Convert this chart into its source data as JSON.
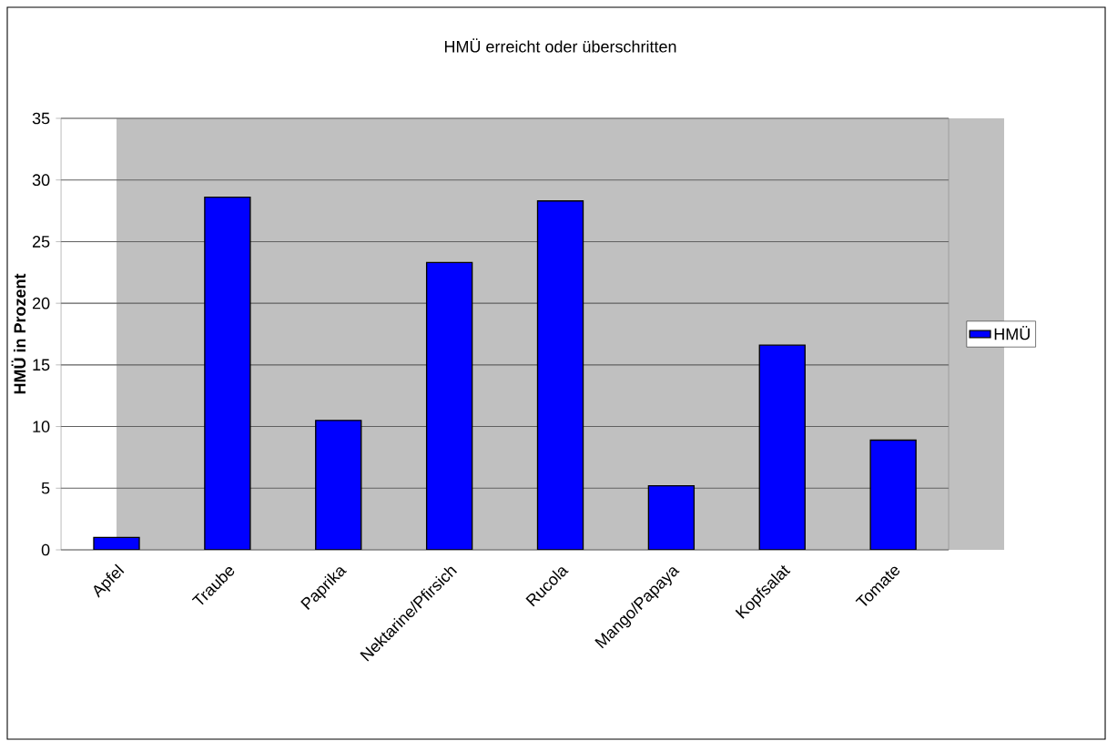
{
  "chart_data": {
    "type": "bar",
    "title": "HMÜ erreicht oder überschritten",
    "ylabel": "HMÜ in Prozent",
    "categories": [
      "Apfel",
      "Traube",
      "Paprika",
      "Nektarine/Pfirsich",
      "Rucola",
      "Mango/Papaya",
      "Kopfsalat",
      "Tomate"
    ],
    "series": [
      {
        "name": "HMÜ",
        "color": "#0000ff",
        "values": [
          1.0,
          28.6,
          10.5,
          23.3,
          28.3,
          5.2,
          16.6,
          8.9
        ]
      }
    ],
    "ylim": [
      0,
      35
    ],
    "yticks": [
      0,
      5,
      10,
      15,
      20,
      25,
      30,
      35
    ],
    "grid": "y",
    "legend": "right"
  }
}
